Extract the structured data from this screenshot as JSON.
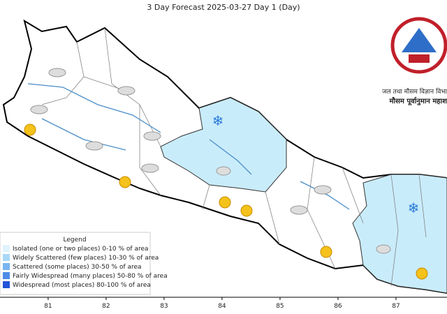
{
  "title": "3 Day Forecast 2025-03-27 Day 1 (Day)",
  "logo": {
    "line1": "जल तथा मौसम विज्ञान विभा",
    "line2": "मौसम पूर्वानुमान महाश"
  },
  "legend": {
    "title": "Legend",
    "items": [
      {
        "label": "Isolated (one or two places)  0-10 % of area",
        "color": "#dff3fd"
      },
      {
        "label": "Widely Scattered (few places) 10-30 % of area",
        "color": "#a9d8f7"
      },
      {
        "label": "Scattered (some places) 30-50  % of area",
        "color": "#78b5f0"
      },
      {
        "label": "Fairly Widespread (many places) 50-80 % of area",
        "color": "#4d8ce8"
      },
      {
        "label": "Widespread (most places) 80-100 % of area",
        "color": "#2255d8"
      }
    ]
  },
  "axis": {
    "xlim": [
      80.17,
      87.88
    ],
    "xticks": [
      81,
      82,
      83,
      84,
      85,
      86,
      87
    ]
  }
}
